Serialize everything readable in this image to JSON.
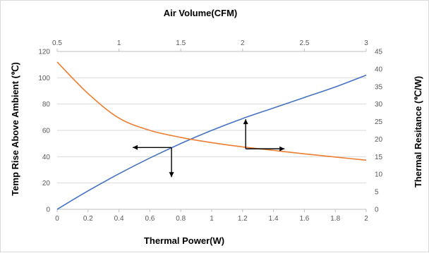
{
  "chart_data": {
    "type": "line",
    "title": "",
    "x_bottom": {
      "label": "Thermal Power(W)",
      "range": [
        0,
        2
      ],
      "ticks": [
        "0",
        "0.2",
        "0.4",
        "0.6",
        "0.8",
        "1",
        "1.2",
        "1.4",
        "1.6",
        "1.8",
        "2"
      ]
    },
    "x_top": {
      "label": "Air Volume(CFM)",
      "range": [
        0.5,
        3
      ],
      "ticks": [
        "0.5",
        "1",
        "1.5",
        "2",
        "2.5",
        "3"
      ]
    },
    "y_left": {
      "label": "Temp Rise Above Ambient (℃)",
      "range": [
        0,
        120
      ],
      "ticks": [
        "0",
        "20",
        "40",
        "60",
        "80",
        "100",
        "120"
      ]
    },
    "y_right": {
      "label": "Thermal Resitance (℃/W)",
      "range": [
        0,
        45
      ],
      "ticks": [
        "0",
        "5",
        "10",
        "15",
        "20",
        "25",
        "30",
        "35",
        "40",
        "45"
      ]
    },
    "grid": "horizontal",
    "series": [
      {
        "axes": "bottom-left",
        "color": "#4472c4",
        "x": [
          0,
          0.2,
          0.4,
          0.6,
          0.8,
          1.0,
          1.2,
          1.4,
          1.6,
          1.8,
          2.0
        ],
        "y": [
          0,
          14,
          27,
          39,
          50,
          60,
          69,
          77,
          85,
          93,
          102
        ]
      },
      {
        "axes": "top-right",
        "color": "#ed7d31",
        "x": [
          0.5,
          0.75,
          1.0,
          1.25,
          1.5,
          1.75,
          2.0,
          2.25,
          2.5,
          2.75,
          3.0
        ],
        "y": [
          42,
          33,
          26,
          22.5,
          20.5,
          19,
          17.8,
          16.8,
          15.8,
          14.9,
          14
        ]
      }
    ],
    "annotations": [
      {
        "type": "arrow-pair",
        "origin_x_bottom": 0.74,
        "origin_y_left": 47,
        "directions": [
          "left",
          "down"
        ]
      },
      {
        "type": "arrow-pair",
        "origin_x_bottom": 1.22,
        "origin_y_left": 46,
        "directions": [
          "up",
          "right"
        ]
      }
    ]
  }
}
